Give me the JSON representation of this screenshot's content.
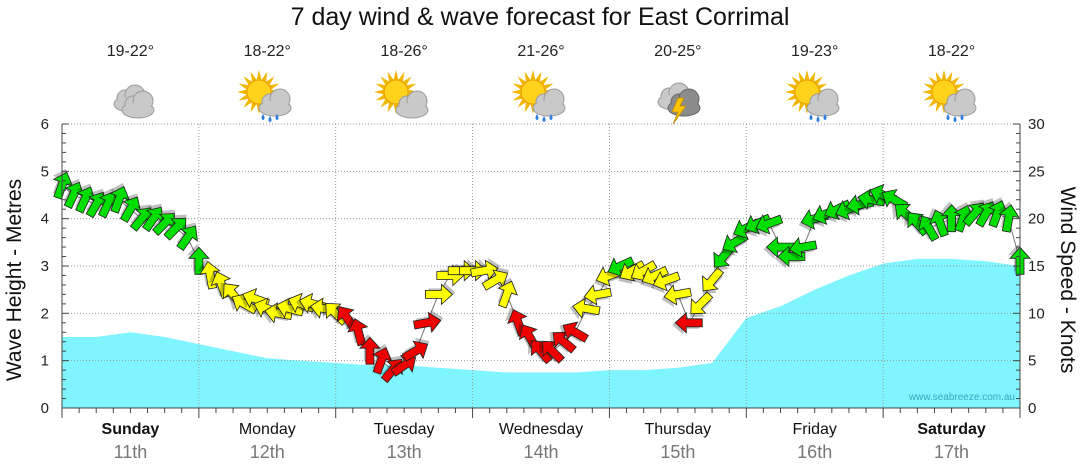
{
  "title": "7 day wind & wave forecast for East Corrimal",
  "watermark": "www.seabreeze.com.au",
  "days": [
    {
      "name": "Sunday",
      "date": "11th",
      "temp": "19-22°",
      "icon": "cloudy-icon",
      "bold": true
    },
    {
      "name": "Monday",
      "date": "12th",
      "temp": "18-22°",
      "icon": "partly-cloudy-showers-icon",
      "bold": false
    },
    {
      "name": "Tuesday",
      "date": "13th",
      "temp": "18-26°",
      "icon": "partly-cloudy-icon",
      "bold": false
    },
    {
      "name": "Wednesday",
      "date": "14th",
      "temp": "21-26°",
      "icon": "partly-cloudy-rain-icon",
      "bold": false
    },
    {
      "name": "Thursday",
      "date": "15th",
      "temp": "20-25°",
      "icon": "thunderstorm-icon",
      "bold": false
    },
    {
      "name": "Friday",
      "date": "16th",
      "temp": "19-23°",
      "icon": "partly-cloudy-rain-icon",
      "bold": false
    },
    {
      "name": "Saturday",
      "date": "17th",
      "temp": "18-22°",
      "icon": "partly-cloudy-rain-icon",
      "bold": true
    }
  ],
  "chart_data": {
    "type": "area+wind-arrows",
    "title": "7 day wind & wave forecast for East Corrimal",
    "y_left": {
      "label": "Wave Height - Metres",
      "range": [
        0,
        6
      ],
      "ticks": [
        0,
        1,
        2,
        3,
        4,
        5,
        6
      ]
    },
    "y_right": {
      "label": "Wind Speed - Knots",
      "range": [
        0,
        30
      ],
      "ticks": [
        0,
        5,
        10,
        15,
        20,
        25,
        30
      ]
    },
    "x_unit": "hours from start of Sunday 11th",
    "x_range": [
      0,
      168
    ],
    "wave_height": {
      "color": "#7ff5ff",
      "x": [
        0,
        6,
        12,
        18,
        24,
        30,
        36,
        42,
        48,
        54,
        60,
        66,
        72,
        78,
        84,
        90,
        96,
        102,
        108,
        114,
        120,
        126,
        132,
        138,
        144,
        150,
        156,
        162,
        168
      ],
      "values": [
        1.5,
        1.5,
        1.6,
        1.5,
        1.35,
        1.2,
        1.05,
        1.0,
        0.95,
        0.9,
        0.9,
        0.85,
        0.8,
        0.75,
        0.75,
        0.75,
        0.8,
        0.8,
        0.85,
        0.95,
        1.9,
        2.15,
        2.5,
        2.8,
        3.05,
        3.15,
        3.15,
        3.1,
        3.0
      ]
    },
    "wind": {
      "colors": {
        "low": "#ee0000",
        "medium": "#ffff00",
        "high": "#00dd00"
      },
      "thresholds_knots": [
        10,
        15
      ],
      "x": [
        0,
        2,
        4,
        6,
        8,
        10,
        12,
        14,
        16,
        18,
        20,
        22,
        24,
        26,
        28,
        30,
        32,
        34,
        36,
        38,
        40,
        42,
        44,
        46,
        48,
        50,
        52,
        54,
        56,
        58,
        60,
        62,
        64,
        66,
        68,
        70,
        72,
        74,
        76,
        78,
        80,
        82,
        84,
        86,
        88,
        90,
        92,
        94,
        96,
        98,
        100,
        102,
        104,
        106,
        108,
        110,
        112,
        114,
        116,
        118,
        120,
        122,
        124,
        126,
        128,
        130,
        132,
        134,
        136,
        138,
        140,
        142,
        144,
        146,
        148,
        150,
        152,
        154,
        156,
        158,
        160,
        162,
        164,
        166,
        168
      ],
      "speed_knots": [
        23.5,
        22.5,
        22,
        21.5,
        21.5,
        22,
        21,
        20,
        20,
        19.5,
        19,
        18,
        15.5,
        14,
        13,
        12,
        11,
        11.5,
        10.5,
        10,
        10.5,
        11,
        11,
        10.5,
        10,
        9.5,
        8,
        6,
        5,
        4,
        4.5,
        6,
        9,
        12,
        14,
        14.5,
        14.5,
        14.5,
        13.5,
        12,
        9,
        7.5,
        6,
        6,
        7,
        8,
        10.5,
        12,
        14,
        15,
        14.5,
        14.5,
        14,
        13.5,
        12,
        9,
        11,
        13.5,
        16,
        17.5,
        19,
        19.5,
        19.5,
        17,
        16,
        17,
        20,
        20.5,
        21,
        21,
        21.5,
        22,
        22.5,
        22,
        20.5,
        19.5,
        19,
        19.5,
        20,
        20,
        20.5,
        20.5,
        20.5,
        20,
        15.5
      ],
      "direction_deg": [
        200,
        205,
        205,
        210,
        205,
        200,
        210,
        220,
        215,
        225,
        225,
        215,
        180,
        170,
        160,
        140,
        120,
        110,
        110,
        100,
        105,
        110,
        105,
        100,
        135,
        145,
        165,
        180,
        200,
        220,
        235,
        240,
        260,
        270,
        270,
        270,
        270,
        260,
        240,
        200,
        160,
        150,
        140,
        135,
        130,
        120,
        100,
        80,
        70,
        65,
        60,
        60,
        65,
        70,
        80,
        90,
        45,
        40,
        40,
        60,
        65,
        65,
        70,
        90,
        90,
        80,
        75,
        70,
        65,
        70,
        80,
        100,
        110,
        120,
        130,
        140,
        150,
        160,
        180,
        200,
        220,
        210,
        200,
        190,
        180
      ]
    }
  }
}
